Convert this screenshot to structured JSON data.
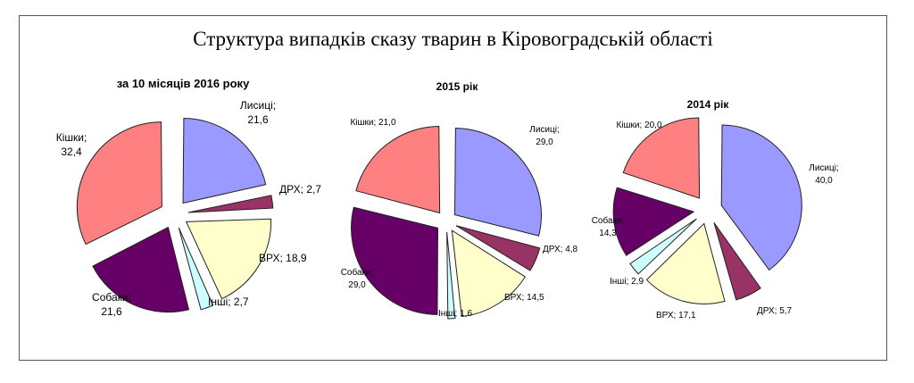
{
  "page_title": "Структура випадків сказу тварин в Кіровоградській області",
  "chart_data": [
    {
      "type": "pie",
      "title": "за 10 місяців 2016 року",
      "slices": [
        {
          "label": "Лисиці",
          "value": 21.6,
          "value_text": "21,6",
          "color": "#9999ff",
          "text": "Лисиці;\n21,6"
        },
        {
          "label": "ДРХ",
          "value": 2.7,
          "value_text": "2,7",
          "color": "#993366",
          "text": "ДРХ; 2,7"
        },
        {
          "label": "ВРХ",
          "value": 18.9,
          "value_text": "18,9",
          "color": "#ffffcc",
          "text": "ВРХ; 18,9"
        },
        {
          "label": "Інші",
          "value": 2.7,
          "value_text": "2,7",
          "color": "#ccffff",
          "text": "Інші; 2,7"
        },
        {
          "label": "Собаки",
          "value": 21.6,
          "value_text": "21,6",
          "color": "#660066",
          "text": "Собаки;\n21,6"
        },
        {
          "label": "Кішки",
          "value": 32.4,
          "value_text": "32,4",
          "color": "#ff8080",
          "text": "Кішки;\n32,4"
        }
      ]
    },
    {
      "type": "pie",
      "title": "2015 рік",
      "slices": [
        {
          "label": "Лисиці",
          "value": 29.0,
          "value_text": "29,0",
          "color": "#9999ff",
          "text": "Лисиці;\n29,0"
        },
        {
          "label": "ДРХ",
          "value": 4.8,
          "value_text": "4,8",
          "color": "#993366",
          "text": "ДРХ; 4,8"
        },
        {
          "label": "ВРХ",
          "value": 14.5,
          "value_text": "14,5",
          "color": "#ffffcc",
          "text": "ВРХ; 14,5"
        },
        {
          "label": "Інші",
          "value": 1.6,
          "value_text": "1,6",
          "color": "#ccffff",
          "text": "Інші; 1,6"
        },
        {
          "label": "Собаки",
          "value": 29.0,
          "value_text": "29,0",
          "color": "#660066",
          "text": "Собаки;\n29,0"
        },
        {
          "label": "Кішки",
          "value": 21.0,
          "value_text": "21,0",
          "color": "#ff8080",
          "text": "Кішки; 21,0"
        }
      ]
    },
    {
      "type": "pie",
      "title": "2014 рік",
      "slices": [
        {
          "label": "Лисиці",
          "value": 40.0,
          "value_text": "40,0",
          "color": "#9999ff",
          "text": "Лисиці;\n40,0"
        },
        {
          "label": "ДРХ",
          "value": 5.7,
          "value_text": "5,7",
          "color": "#993366",
          "text": "ДРХ; 5,7"
        },
        {
          "label": "ВРХ",
          "value": 17.1,
          "value_text": "17,1",
          "color": "#ffffcc",
          "text": "ВРХ; 17,1"
        },
        {
          "label": "Інші",
          "value": 2.9,
          "value_text": "2,9",
          "color": "#ccffff",
          "text": "Інші; 2,9"
        },
        {
          "label": "Собаки",
          "value": 14.3,
          "value_text": "14,3",
          "color": "#660066",
          "text": "Собаки;\n14,3"
        },
        {
          "label": "Кішки",
          "value": 20.0,
          "value_text": "20,0",
          "color": "#ff8080",
          "text": "Кішки; 20,0"
        }
      ]
    }
  ]
}
